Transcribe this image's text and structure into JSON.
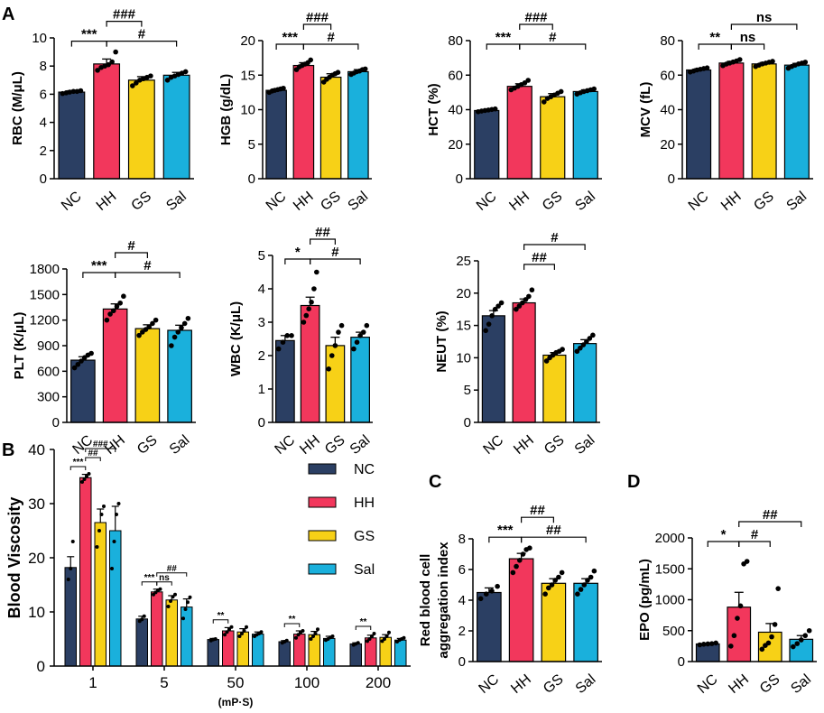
{
  "figure": {
    "panel_labels": [
      "A",
      "B",
      "C",
      "D"
    ],
    "colors": {
      "NC": "#2b3f63",
      "HH": "#f2375c",
      "GS": "#f7d117",
      "Sal": "#1ab0dc",
      "axis": "#000000"
    }
  },
  "chart_data": [
    {
      "id": "rbc",
      "type": "bar",
      "ylabel": "RBC (M/μL)",
      "ylim": [
        0,
        10
      ],
      "yticks": [
        0,
        2,
        4,
        6,
        8,
        10
      ],
      "categories": [
        "NC",
        "HH",
        "GS",
        "Sal"
      ],
      "values": [
        6.15,
        8.15,
        7.0,
        7.35
      ],
      "errors": [
        0.1,
        0.35,
        0.25,
        0.2
      ],
      "points": [
        [
          6.05,
          6.1,
          6.15,
          6.2,
          6.2,
          6.25
        ],
        [
          7.7,
          7.9,
          8.0,
          8.1,
          8.3,
          9.0
        ],
        [
          6.6,
          6.8,
          7.0,
          7.1,
          7.2,
          7.3
        ],
        [
          7.0,
          7.2,
          7.3,
          7.4,
          7.5,
          7.6
        ]
      ],
      "annotations": [
        {
          "from": 0,
          "to": 1,
          "text": "***",
          "level": 0
        },
        {
          "from": 1,
          "to": 2,
          "text": "###",
          "level": 1
        },
        {
          "from": 1,
          "to": 3,
          "text": "#",
          "level": 0
        }
      ]
    },
    {
      "id": "hgb",
      "type": "bar",
      "ylabel": "HGB (g/dL)",
      "ylim": [
        0,
        20
      ],
      "yticks": [
        0,
        5,
        10,
        15,
        20
      ],
      "categories": [
        "NC",
        "HH",
        "GS",
        "Sal"
      ],
      "values": [
        12.8,
        16.4,
        14.7,
        15.5
      ],
      "errors": [
        0.2,
        0.4,
        0.5,
        0.3
      ],
      "points": [
        [
          12.5,
          12.7,
          12.8,
          12.9,
          13.0,
          13.1
        ],
        [
          15.8,
          16.2,
          16.4,
          16.6,
          16.8,
          17.2
        ],
        [
          14.0,
          14.4,
          14.7,
          15.0,
          15.2,
          15.4
        ],
        [
          15.1,
          15.3,
          15.5,
          15.6,
          15.8,
          15.9
        ]
      ],
      "annotations": [
        {
          "from": 0,
          "to": 1,
          "text": "***",
          "level": 0
        },
        {
          "from": 1,
          "to": 2,
          "text": "###",
          "level": 1
        },
        {
          "from": 1,
          "to": 3,
          "text": "#",
          "level": 0
        }
      ]
    },
    {
      "id": "hct",
      "type": "bar",
      "ylabel": "HCT (%)",
      "ylim": [
        0,
        80
      ],
      "yticks": [
        0,
        20,
        40,
        60,
        80
      ],
      "categories": [
        "NC",
        "HH",
        "GS",
        "Sal"
      ],
      "values": [
        39.5,
        53.5,
        47.5,
        50.5
      ],
      "errors": [
        0.6,
        1.5,
        1.8,
        1.0
      ],
      "points": [
        [
          38.8,
          39.2,
          39.5,
          39.8,
          40.1,
          40.4
        ],
        [
          51.5,
          52.5,
          53.5,
          54.5,
          55.5,
          57.0
        ],
        [
          44.5,
          46.5,
          47.5,
          48.5,
          49.5,
          50.5
        ],
        [
          49.0,
          49.8,
          50.5,
          51.0,
          51.5,
          52.0
        ]
      ],
      "annotations": [
        {
          "from": 0,
          "to": 1,
          "text": "***",
          "level": 0
        },
        {
          "from": 1,
          "to": 2,
          "text": "###",
          "level": 1
        },
        {
          "from": 1,
          "to": 3,
          "text": "#",
          "level": 0
        }
      ]
    },
    {
      "id": "mcv",
      "type": "bar",
      "ylabel": "MCV (fL)",
      "ylim": [
        0,
        80
      ],
      "yticks": [
        0,
        20,
        40,
        60,
        80
      ],
      "categories": [
        "NC",
        "HH",
        "GS",
        "Sal"
      ],
      "values": [
        63,
        67,
        66.5,
        65.8
      ],
      "errors": [
        0.7,
        1.0,
        0.8,
        1.0
      ],
      "points": [
        [
          61.8,
          62.4,
          63.0,
          63.4,
          63.8,
          64.2
        ],
        [
          65.5,
          66.4,
          67.0,
          67.6,
          68.2,
          69.0
        ],
        [
          65.0,
          65.8,
          66.5,
          67.0,
          67.5,
          68.0
        ],
        [
          64.0,
          65.0,
          65.8,
          66.5,
          67.0,
          67.5
        ]
      ],
      "annotations": [
        {
          "from": 0,
          "to": 1,
          "text": "**",
          "level": 0
        },
        {
          "from": 1,
          "to": 2,
          "text": "ns",
          "level": 0
        },
        {
          "from": 1,
          "to": 3,
          "text": "ns",
          "level": 1
        }
      ]
    },
    {
      "id": "plt",
      "type": "bar",
      "ylabel": "PLT (K/μL)",
      "ylim": [
        0,
        1800
      ],
      "yticks": [
        0,
        300,
        600,
        900,
        1200,
        1500,
        1800
      ],
      "categories": [
        "NC",
        "HH",
        "GS",
        "Sal"
      ],
      "values": [
        730,
        1330,
        1100,
        1080
      ],
      "errors": [
        40,
        60,
        45,
        60
      ],
      "points": [
        [
          640,
          680,
          720,
          760,
          790,
          810
        ],
        [
          1200,
          1270,
          1310,
          1360,
          1400,
          1480
        ],
        [
          1020,
          1060,
          1090,
          1120,
          1160,
          1200
        ],
        [
          900,
          1000,
          1060,
          1110,
          1160,
          1220
        ]
      ],
      "annotations": [
        {
          "from": 0,
          "to": 1,
          "text": "***",
          "level": 0
        },
        {
          "from": 1,
          "to": 2,
          "text": "#",
          "level": 1
        },
        {
          "from": 1,
          "to": 3,
          "text": "#",
          "level": 0
        }
      ]
    },
    {
      "id": "wbc",
      "type": "bar",
      "ylabel": "WBC (K/μL)",
      "ylim": [
        0,
        5
      ],
      "yticks": [
        0,
        1,
        2,
        3,
        4,
        5
      ],
      "categories": [
        "NC",
        "HH",
        "GS",
        "Sal"
      ],
      "values": [
        2.45,
        3.5,
        2.3,
        2.55
      ],
      "errors": [
        0.15,
        0.25,
        0.25,
        0.15
      ],
      "points": [
        [
          2.2,
          2.4,
          2.6,
          2.6
        ],
        [
          3.0,
          3.2,
          3.4,
          3.6,
          4.0,
          4.5
        ],
        [
          1.6,
          2.0,
          2.3,
          2.7,
          2.9
        ],
        [
          2.2,
          2.4,
          2.6,
          2.7,
          2.9
        ]
      ],
      "annotations": [
        {
          "from": 0,
          "to": 1,
          "text": "*",
          "level": 0
        },
        {
          "from": 1,
          "to": 2,
          "text": "##",
          "level": 1
        },
        {
          "from": 1,
          "to": 3,
          "text": "#",
          "level": 0
        }
      ]
    },
    {
      "id": "neut",
      "type": "bar",
      "ylabel": "NEUT (%)",
      "ylim": [
        0,
        25
      ],
      "yticks": [
        0,
        5,
        10,
        15,
        20,
        25
      ],
      "categories": [
        "NC",
        "HH",
        "GS",
        "Sal"
      ],
      "values": [
        16.5,
        18.5,
        10.4,
        12.2
      ],
      "errors": [
        0.8,
        0.6,
        0.4,
        0.6
      ],
      "points": [
        [
          14.2,
          15.2,
          16.5,
          17.5,
          18.0,
          18.5
        ],
        [
          17.5,
          18.0,
          18.5,
          19.0,
          19.5,
          20.5
        ],
        [
          9.5,
          10.0,
          10.4,
          10.8,
          11.0,
          11.3
        ],
        [
          11.0,
          11.5,
          12.0,
          12.5,
          13.0,
          13.5
        ]
      ],
      "annotations": [
        {
          "from": 1,
          "to": 2,
          "text": "##",
          "level": 0
        },
        {
          "from": 1,
          "to": 3,
          "text": "#",
          "level": 1
        }
      ]
    },
    {
      "id": "viscosity",
      "type": "bar",
      "ylabel": "Blood Viscosity",
      "ylim": [
        0,
        40
      ],
      "yticks": [
        0,
        10,
        20,
        30,
        40
      ],
      "categories": [
        "1",
        "5",
        "50",
        "100",
        "200"
      ],
      "xnote": "(mP·S)",
      "series": [
        {
          "name": "NC",
          "values": [
            18.2,
            8.7,
            4.9,
            4.5,
            4.1
          ],
          "errors": [
            2.0,
            0.5,
            0.2,
            0.2,
            0.2
          ],
          "points": [
            [
              16.0,
              18.0,
              23.0
            ],
            [
              8.3,
              8.6,
              9.2
            ],
            [
              4.7,
              4.9,
              5.0
            ],
            [
              4.3,
              4.5,
              4.7
            ],
            [
              3.9,
              4.1,
              4.3
            ]
          ]
        },
        {
          "name": "HH",
          "values": [
            34.8,
            13.7,
            6.5,
            5.9,
            5.2
          ],
          "errors": [
            0.6,
            0.5,
            0.6,
            0.6,
            0.5
          ],
          "points": [
            [
              34.0,
              34.5,
              35.0,
              35.5
            ],
            [
              13.2,
              13.6,
              14.0,
              14.2
            ],
            [
              5.8,
              6.3,
              6.8,
              7.2
            ],
            [
              5.2,
              5.8,
              6.2,
              6.5
            ],
            [
              4.6,
              5.0,
              5.5,
              6.0
            ]
          ]
        },
        {
          "name": "GS",
          "values": [
            26.5,
            12.2,
            6.3,
            5.8,
            5.3
          ],
          "errors": [
            2.5,
            0.8,
            0.6,
            0.6,
            0.5
          ],
          "points": [
            [
              22.0,
              25.0,
              28.0,
              29.5
            ],
            [
              11.0,
              12.0,
              12.8,
              13.2
            ],
            [
              5.5,
              6.0,
              6.5,
              7.2
            ],
            [
              5.0,
              5.5,
              6.0,
              6.8
            ],
            [
              4.6,
              5.0,
              5.5,
              6.2
            ]
          ]
        },
        {
          "name": "Sal",
          "values": [
            25.0,
            10.9,
            5.9,
            5.1,
            4.8
          ],
          "errors": [
            4.5,
            1.5,
            0.4,
            0.4,
            0.3
          ],
          "points": [
            [
              18.0,
              23.0,
              28.0,
              30.0
            ],
            [
              8.8,
              10.5,
              11.8,
              12.7
            ],
            [
              5.5,
              5.8,
              6.0,
              6.3
            ],
            [
              4.8,
              5.0,
              5.3,
              5.5
            ],
            [
              4.5,
              4.8,
              5.0,
              5.2
            ]
          ]
        }
      ],
      "annotations": [
        {
          "group": 0,
          "from": 0,
          "to": 1,
          "text": "***",
          "level": 0
        },
        {
          "group": 0,
          "from": 1,
          "to": 2,
          "text": "##",
          "level": 1
        },
        {
          "group": 0,
          "from": 1,
          "to": 3,
          "text": "###",
          "level": 2
        },
        {
          "group": 1,
          "from": 0,
          "to": 1,
          "text": "***",
          "level": 0
        },
        {
          "group": 1,
          "from": 1,
          "to": 2,
          "text": "ns",
          "level": 0
        },
        {
          "group": 1,
          "from": 1,
          "to": 3,
          "text": "##",
          "level": 1
        },
        {
          "group": 2,
          "from": 0,
          "to": 1,
          "text": "**",
          "level": 0
        },
        {
          "group": 3,
          "from": 0,
          "to": 1,
          "text": "**",
          "level": 0
        },
        {
          "group": 4,
          "from": 0,
          "to": 1,
          "text": "**",
          "level": 0
        }
      ],
      "legend": [
        "NC",
        "HH",
        "GS",
        "Sal"
      ]
    },
    {
      "id": "rbc_agg",
      "type": "bar",
      "ylabel": [
        "Red blood cell",
        "aggregation index"
      ],
      "ylim": [
        0,
        8
      ],
      "yticks": [
        0,
        2,
        4,
        6,
        8
      ],
      "categories": [
        "NC",
        "HH",
        "GS",
        "Sal"
      ],
      "values": [
        4.5,
        6.7,
        5.1,
        5.1
      ],
      "errors": [
        0.3,
        0.35,
        0.3,
        0.3
      ],
      "points": [
        [
          4.1,
          4.4,
          4.6,
          4.9
        ],
        [
          5.8,
          6.2,
          6.6,
          7.0,
          7.3,
          7.4
        ],
        [
          4.4,
          4.8,
          5.0,
          5.3,
          5.5,
          5.8
        ],
        [
          4.4,
          4.7,
          5.0,
          5.3,
          5.5,
          5.9
        ]
      ],
      "annotations": [
        {
          "from": 0,
          "to": 1,
          "text": "***",
          "level": 0
        },
        {
          "from": 1,
          "to": 2,
          "text": "##",
          "level": 1
        },
        {
          "from": 1,
          "to": 3,
          "text": "##",
          "level": 0
        }
      ]
    },
    {
      "id": "epo",
      "type": "bar",
      "ylabel": "EPO (pg/mL)",
      "ylim": [
        0,
        2000
      ],
      "yticks": [
        0,
        500,
        1000,
        1500,
        2000
      ],
      "categories": [
        "NC",
        "HH",
        "GS",
        "Sal"
      ],
      "values": [
        285,
        880,
        475,
        360
      ],
      "errors": [
        10,
        240,
        140,
        60
      ],
      "points": [
        [
          270,
          280,
          285,
          290,
          300
        ],
        [
          250,
          420,
          700,
          900,
          1580,
          1620
        ],
        [
          200,
          260,
          300,
          400,
          600,
          1180
        ],
        [
          240,
          290,
          350,
          420,
          500
        ]
      ],
      "annotations": [
        {
          "from": 0,
          "to": 1,
          "text": "*",
          "level": 0
        },
        {
          "from": 1,
          "to": 2,
          "text": "#",
          "level": 0
        },
        {
          "from": 1,
          "to": 3,
          "text": "##",
          "level": 1
        }
      ]
    }
  ]
}
